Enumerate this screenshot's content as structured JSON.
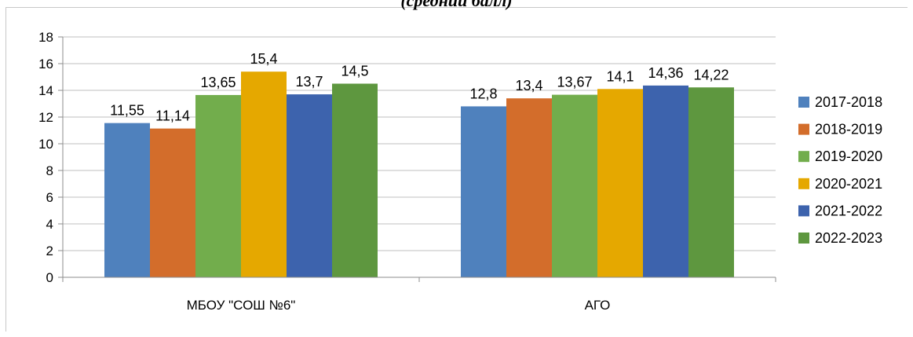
{
  "chart_data": {
    "type": "bar",
    "title": "(средний балл)",
    "categories": [
      "МБОУ \"СОШ №6\"",
      "АГО"
    ],
    "series": [
      {
        "name": "2017-2018",
        "color": "#4f81bd",
        "values": [
          11.55,
          12.8
        ],
        "labels": [
          "11,55",
          "12,8"
        ]
      },
      {
        "name": "2018-2019",
        "color": "#d36d2b",
        "values": [
          11.14,
          13.4
        ],
        "labels": [
          "11,14",
          "13,4"
        ]
      },
      {
        "name": "2019-2020",
        "color": "#72ad4c",
        "values": [
          13.65,
          13.67
        ],
        "labels": [
          "13,65",
          "13,67"
        ]
      },
      {
        "name": "2020-2021",
        "color": "#e5a800",
        "values": [
          15.4,
          14.1
        ],
        "labels": [
          "15,4",
          "14,1"
        ]
      },
      {
        "name": "2021-2022",
        "color": "#3d63ad",
        "values": [
          13.7,
          14.36
        ],
        "labels": [
          "13,7",
          "14,36"
        ]
      },
      {
        "name": "2022-2023",
        "color": "#5e973f",
        "values": [
          14.5,
          14.22
        ],
        "labels": [
          "14,5",
          "14,22"
        ]
      }
    ],
    "ylim": [
      0,
      18
    ],
    "yticks": [
      0,
      2,
      4,
      6,
      8,
      10,
      12,
      14,
      16,
      18
    ],
    "grid": true,
    "legend": "right"
  }
}
